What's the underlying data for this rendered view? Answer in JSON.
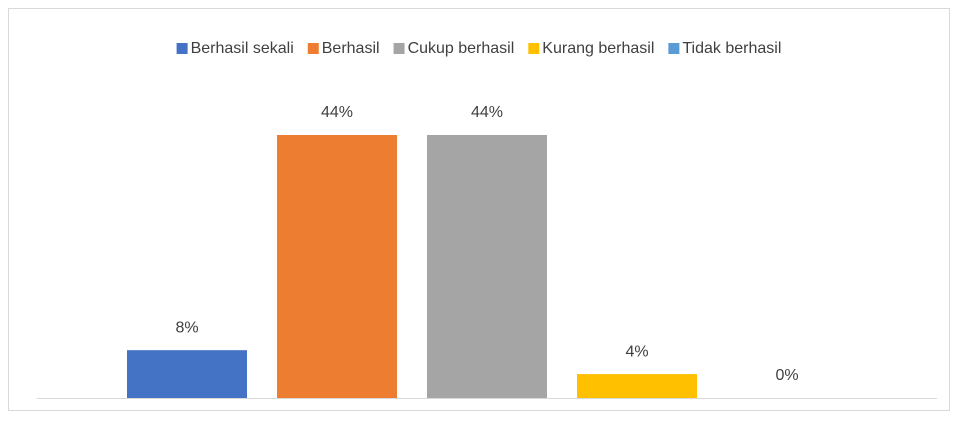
{
  "chart_data": {
    "type": "bar",
    "categories": [
      null
    ],
    "series": [
      {
        "name": "Berhasil sekali",
        "color": "#4472c4",
        "values": [
          8
        ],
        "value_labels": [
          "8%"
        ]
      },
      {
        "name": "Berhasil",
        "color": "#ed7d31",
        "values": [
          44
        ],
        "value_labels": [
          "44%"
        ]
      },
      {
        "name": "Cukup berhasil",
        "color": "#a5a5a5",
        "values": [
          44
        ],
        "value_labels": [
          "44%"
        ]
      },
      {
        "name": "Kurang berhasil",
        "color": "#ffc000",
        "values": [
          4
        ],
        "value_labels": [
          "4%"
        ]
      },
      {
        "name": "Tidak berhasil",
        "color": "#5b9bd5",
        "values": [
          0
        ],
        "value_labels": [
          "0%"
        ]
      }
    ],
    "legend": "top"
  }
}
